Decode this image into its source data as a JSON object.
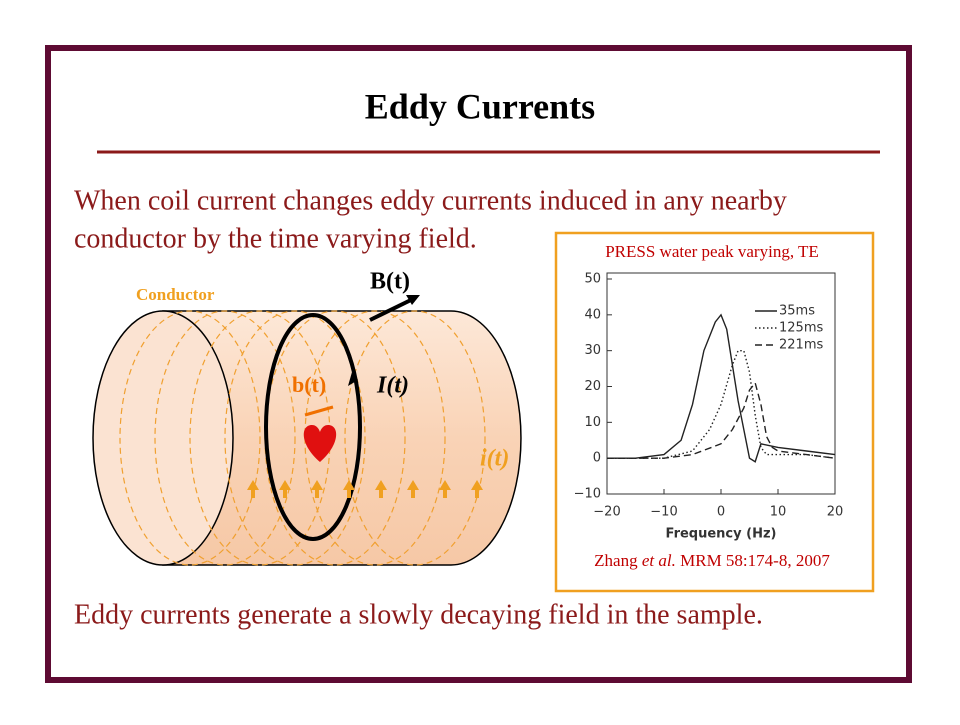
{
  "header": {
    "title": "Eddy Currents"
  },
  "body": {
    "intro": [
      "When coil current changes eddy currents induced in any nearby",
      "conductor by the time varying field."
    ],
    "conclusion": "Eddy currents generate a slowly decaying field in the sample."
  },
  "diagram": {
    "conductor": "Conductor",
    "B_field": "B(t)",
    "b_field": "b(t)",
    "coil_current": "I(t)",
    "eddy_current": "i(t)"
  },
  "figure": {
    "caption": "PRESS water peak varying, TE",
    "citation": [
      "Zhang",
      "et al.",
      "MRM 58:174-8, 2007"
    ]
  },
  "chart_data": {
    "type": "line",
    "x_label": "Frequency (Hz)",
    "xlim": [
      -20,
      20
    ],
    "xticks": [
      {
        "value": -20,
        "label": "−20"
      },
      {
        "value": -10,
        "label": "−10"
      },
      0,
      10,
      20
    ],
    "ylim": [
      -10,
      50
    ],
    "yticks": [
      {
        "value": -10,
        "label": "−10"
      },
      0,
      10,
      20,
      30,
      40,
      50
    ],
    "legend": "upper right",
    "series": [
      {
        "name": "35ms",
        "color": "#222222",
        "dash": "solid",
        "x": [
          -20,
          -15,
          -10,
          -7,
          -5,
          -3,
          -1,
          0,
          1,
          2,
          3,
          4,
          5,
          6,
          7,
          10,
          15,
          20
        ],
        "values": [
          0,
          0,
          1,
          5,
          15,
          30,
          38,
          40,
          36,
          26,
          16,
          8,
          0,
          -1,
          4,
          3,
          2,
          1
        ]
      },
      {
        "name": "125ms",
        "color": "#222222",
        "dash": "dotted",
        "x": [
          -20,
          -10,
          -5,
          -2,
          0,
          2,
          3,
          4,
          5,
          6,
          7,
          8,
          10,
          15,
          20
        ],
        "values": [
          0,
          0,
          2,
          8,
          15,
          26,
          30,
          30,
          24,
          12,
          3,
          1,
          1,
          1,
          0
        ]
      },
      {
        "name": "221ms",
        "color": "#222222",
        "dash": "dashed",
        "x": [
          -20,
          -10,
          -5,
          0,
          2,
          4,
          5,
          6,
          7,
          8,
          9,
          10,
          15,
          20
        ],
        "values": [
          0,
          0,
          1,
          4,
          8,
          14,
          19,
          21,
          15,
          6,
          3,
          2,
          1,
          0
        ]
      }
    ]
  }
}
